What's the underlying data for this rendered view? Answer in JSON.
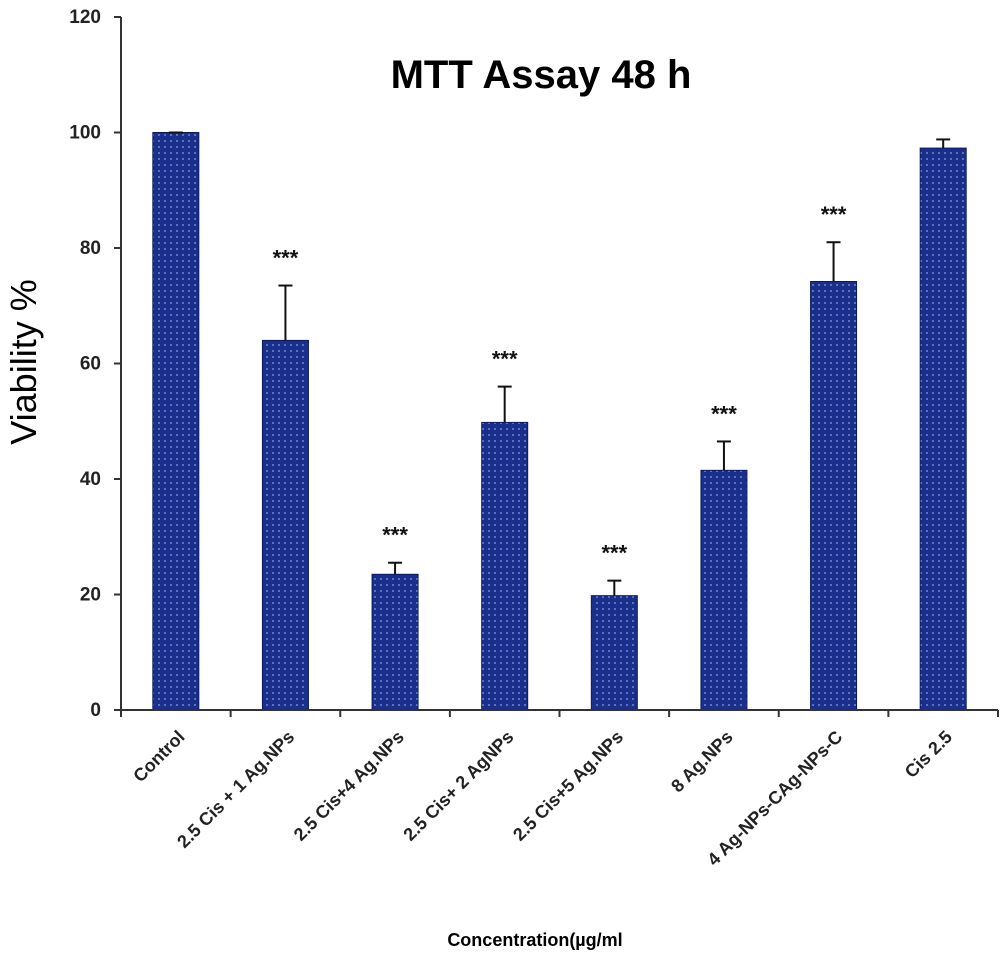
{
  "chart_data": {
    "type": "bar",
    "title": "MTT Assay 48 h",
    "xlabel": "Concentration(µg/ml",
    "ylabel": "Viability %",
    "ylim": [
      0,
      120
    ],
    "yticks": [
      0,
      20,
      40,
      60,
      80,
      100,
      120
    ],
    "grid": false,
    "bar_color": "#1a2e8c",
    "categories": [
      "Control",
      "2.5 Cis + 1 Ag.NPs",
      "2.5 Cis+4 Ag.NPs",
      "2.5 Cis+ 2 AgNPs",
      "2.5 Cis+5 Ag.NPs",
      "8 Ag.NPs",
      "4 Ag-NPs-CAg-NPs-C",
      "Cis 2.5"
    ],
    "values": [
      100,
      64,
      23.5,
      49.8,
      19.8,
      41.5,
      74.2,
      97.3
    ],
    "errors": [
      0,
      9.5,
      2,
      6.2,
      2.6,
      5,
      6.8,
      1.5
    ],
    "annotations": [
      "",
      "***",
      "***",
      "***",
      "***",
      "***",
      "***",
      ""
    ]
  }
}
